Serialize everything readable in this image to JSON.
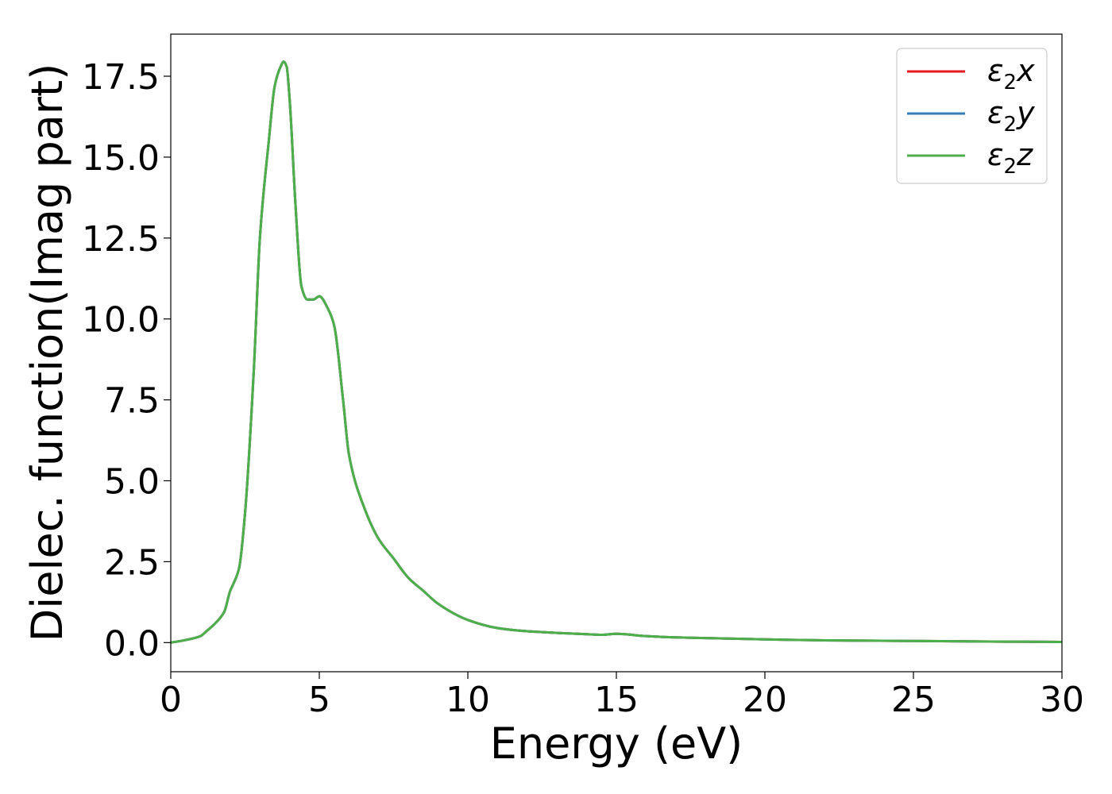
{
  "chart_data": {
    "type": "line",
    "title": "",
    "xlabel": "Energy (eV)",
    "ylabel": "Dielec. function(Imag part)",
    "xlim": [
      0,
      30
    ],
    "ylim": [
      -0.9,
      18.8
    ],
    "xticks": [
      0,
      5,
      10,
      15,
      20,
      25,
      30
    ],
    "xtick_labels": [
      "0",
      "5",
      "10",
      "15",
      "20",
      "25",
      "30"
    ],
    "yticks": [
      0.0,
      2.5,
      5.0,
      7.5,
      10.0,
      12.5,
      15.0,
      17.5
    ],
    "ytick_labels": [
      "0.0",
      "2.5",
      "5.0",
      "7.5",
      "10.0",
      "12.5",
      "15.0",
      "17.5"
    ],
    "grid": false,
    "legend_position": "top-right",
    "x": [
      0,
      0.5,
      1.0,
      1.2,
      1.5,
      1.8,
      2.0,
      2.1,
      2.3,
      2.5,
      2.8,
      3.0,
      3.3,
      3.5,
      3.7,
      3.8,
      3.9,
      4.0,
      4.2,
      4.4,
      4.6,
      4.8,
      5.0,
      5.3,
      5.5,
      5.8,
      6.0,
      6.5,
      7.0,
      7.5,
      8.0,
      8.5,
      9.0,
      10.0,
      11.0,
      12.0,
      13.0,
      14.0,
      14.5,
      15.0,
      16.0,
      17.0,
      18.0,
      20.0,
      22.0,
      25.0,
      28.0,
      30.0
    ],
    "series": [
      {
        "name": "ε2x",
        "label_main": "ε",
        "label_sub": "2",
        "label_suffix": "x",
        "color": "#e41a1c",
        "values": [
          0.0,
          0.08,
          0.2,
          0.35,
          0.6,
          0.95,
          1.6,
          1.8,
          2.3,
          4.0,
          8.5,
          12.5,
          15.5,
          17.2,
          17.8,
          17.95,
          17.8,
          16.8,
          13.5,
          11.0,
          10.6,
          10.6,
          10.7,
          10.3,
          9.8,
          7.5,
          5.8,
          4.2,
          3.2,
          2.6,
          2.0,
          1.6,
          1.2,
          0.7,
          0.45,
          0.35,
          0.3,
          0.26,
          0.24,
          0.27,
          0.2,
          0.16,
          0.14,
          0.1,
          0.07,
          0.05,
          0.03,
          0.02
        ]
      },
      {
        "name": "ε2y",
        "label_main": "ε",
        "label_sub": "2",
        "label_suffix": "y",
        "color": "#377eb8",
        "values": [
          0.0,
          0.08,
          0.2,
          0.35,
          0.6,
          0.95,
          1.6,
          1.8,
          2.3,
          4.0,
          8.5,
          12.5,
          15.5,
          17.2,
          17.8,
          17.95,
          17.8,
          16.8,
          13.5,
          11.0,
          10.6,
          10.6,
          10.7,
          10.3,
          9.8,
          7.5,
          5.8,
          4.2,
          3.2,
          2.6,
          2.0,
          1.6,
          1.2,
          0.7,
          0.45,
          0.35,
          0.3,
          0.26,
          0.24,
          0.27,
          0.2,
          0.16,
          0.14,
          0.1,
          0.07,
          0.05,
          0.03,
          0.02
        ]
      },
      {
        "name": "ε2z",
        "label_main": "ε",
        "label_sub": "2",
        "label_suffix": "z",
        "color": "#4daf4a",
        "values": [
          0.0,
          0.08,
          0.2,
          0.35,
          0.6,
          0.95,
          1.6,
          1.8,
          2.3,
          4.0,
          8.5,
          12.5,
          15.5,
          17.2,
          17.8,
          17.95,
          17.8,
          16.8,
          13.5,
          11.0,
          10.6,
          10.6,
          10.7,
          10.3,
          9.8,
          7.5,
          5.8,
          4.2,
          3.2,
          2.6,
          2.0,
          1.6,
          1.2,
          0.7,
          0.45,
          0.35,
          0.3,
          0.26,
          0.24,
          0.27,
          0.2,
          0.16,
          0.14,
          0.1,
          0.07,
          0.05,
          0.03,
          0.02
        ]
      }
    ]
  }
}
